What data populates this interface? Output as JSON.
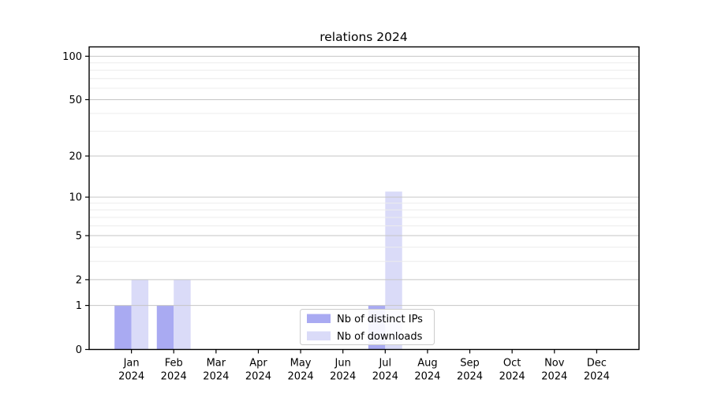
{
  "chart_data": {
    "type": "bar",
    "title": "relations 2024",
    "categories": [
      "Jan",
      "Feb",
      "Mar",
      "Apr",
      "May",
      "Jun",
      "Jul",
      "Aug",
      "Sep",
      "Oct",
      "Nov",
      "Dec"
    ],
    "year": "2024",
    "series": [
      {
        "name": "Nb of distinct IPs",
        "color": "#a9aaf2",
        "values": [
          1,
          1,
          0,
          0,
          0,
          0,
          1,
          0,
          0,
          0,
          0,
          0
        ]
      },
      {
        "name": "Nb of downloads",
        "color": "#dadbf8",
        "values": [
          2,
          2,
          0,
          0,
          0,
          0,
          11,
          0,
          0,
          0,
          0,
          0
        ]
      }
    ],
    "yscale": "log1p",
    "yticks": [
      0,
      1,
      2,
      5,
      10,
      20,
      50,
      100
    ],
    "minor_yticks": [
      3,
      4,
      6,
      7,
      8,
      9,
      30,
      40,
      60,
      70,
      80,
      90
    ],
    "ylim": [
      0,
      116
    ],
    "xlabel": "",
    "ylabel": "",
    "grid": true,
    "legend_position": "lower center inside"
  },
  "colors": {
    "background": "#ffffff",
    "spine": "#000000",
    "grid_major": "#c6c6c6",
    "grid_minor": "#ececec",
    "tick_text": "#000000",
    "legend_border": "#cccccc",
    "legend_background": "#ffffff"
  }
}
